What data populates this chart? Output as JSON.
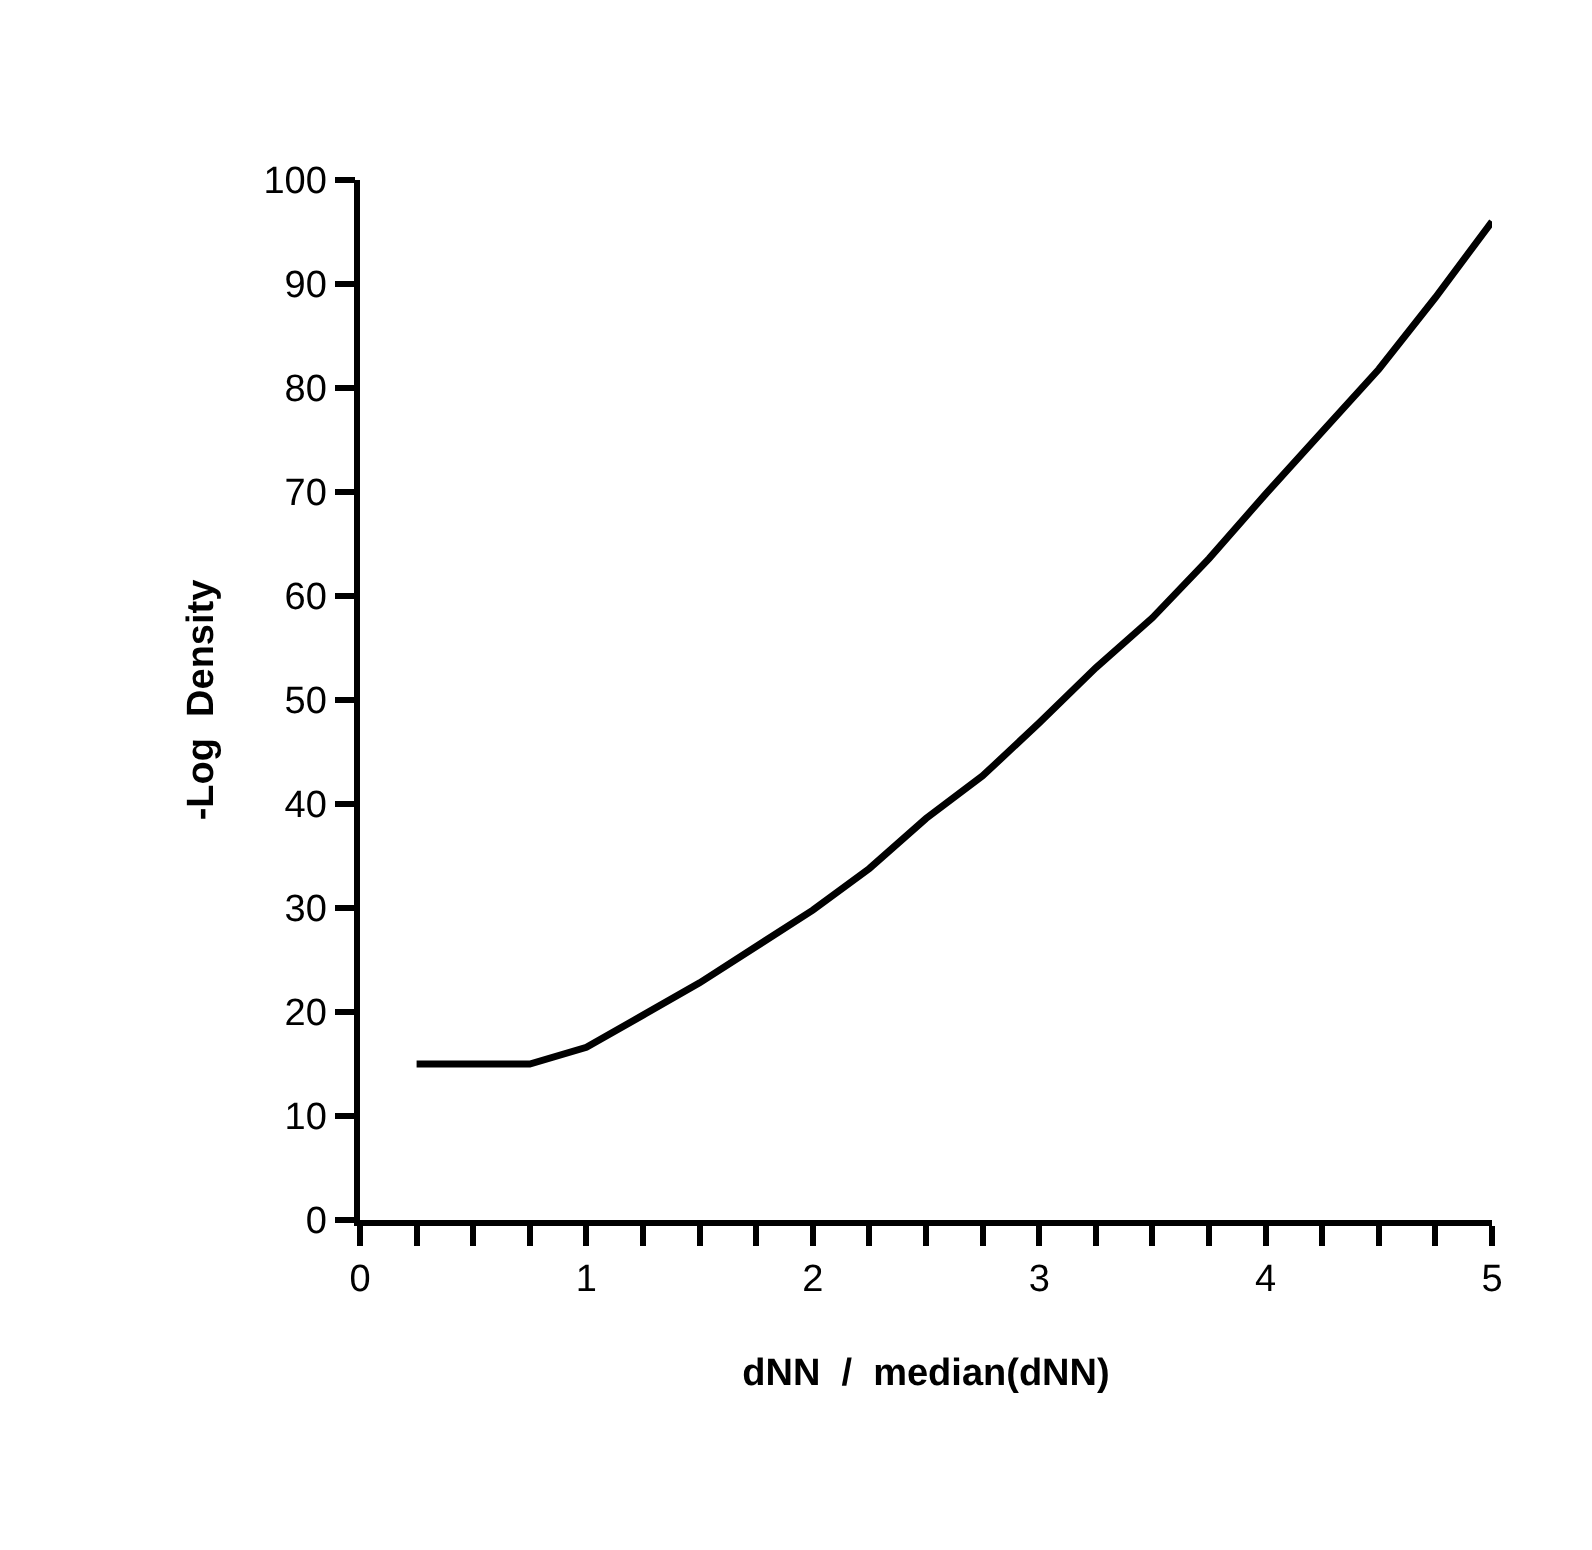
{
  "chart_data": {
    "type": "line",
    "xlabel": "dNN  /  median(dNN)",
    "ylabel": "-Log  Density",
    "x": [
      0.25,
      0.5,
      0.75,
      1.0,
      1.25,
      1.5,
      1.75,
      2.0,
      2.25,
      2.5,
      2.75,
      3.0,
      3.25,
      3.5,
      3.75,
      4.0,
      4.25,
      4.5,
      4.75,
      5.0
    ],
    "series": [
      {
        "color": "#000000",
        "values": [
          15.0,
          15.0,
          15.0,
          16.6,
          19.7,
          22.8,
          26.3,
          29.8,
          33.8,
          38.6,
          42.7,
          47.8,
          53.1,
          57.9,
          63.6,
          69.8,
          75.8,
          81.8,
          88.7,
          96.0
        ]
      }
    ],
    "xlim": [
      0,
      5
    ],
    "ylim": [
      0,
      100
    ],
    "xticks": [
      0,
      {
        "value": 0.25,
        "label": null
      },
      {
        "value": 0.5,
        "label": null
      },
      {
        "value": 0.75,
        "label": null
      },
      1,
      {
        "value": 1.25,
        "label": null
      },
      {
        "value": 1.5,
        "label": null
      },
      {
        "value": 1.75,
        "label": null
      },
      2,
      {
        "value": 2.25,
        "label": null
      },
      {
        "value": 2.5,
        "label": null
      },
      {
        "value": 2.75,
        "label": null
      },
      3,
      {
        "value": 3.25,
        "label": null
      },
      {
        "value": 3.5,
        "label": null
      },
      {
        "value": 3.75,
        "label": null
      },
      4,
      {
        "value": 4.25,
        "label": null
      },
      {
        "value": 4.5,
        "label": null
      },
      {
        "value": 4.75,
        "label": null
      },
      5
    ],
    "yticks": [
      0,
      10,
      20,
      30,
      40,
      50,
      60,
      70,
      80,
      90,
      100
    ],
    "marker": "none",
    "line_style": "solid"
  }
}
